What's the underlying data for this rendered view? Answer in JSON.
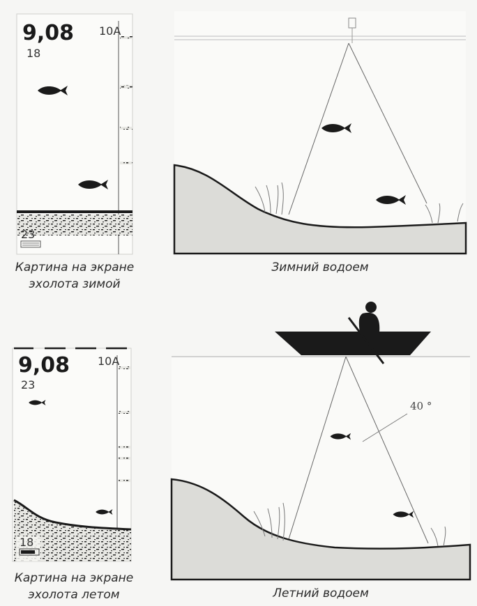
{
  "captions": {
    "winter_screen": [
      "Картина на экране",
      "эхолота зимой"
    ],
    "winter_water": "Зимний водоем",
    "summer_screen": [
      "Картина на экране",
      "эхолота летом"
    ],
    "summer_water": "Летний водоем"
  },
  "winter_screen": {
    "depth": "9,08",
    "temperature": "18",
    "mode": "10A",
    "bottom_reading": "23"
  },
  "summer_screen": {
    "depth": "9,08",
    "temperature": "23",
    "mode": "10A",
    "bottom_reading": "18"
  },
  "summer_water": {
    "beam_angle": "40 °"
  },
  "icons": [
    "fish-icon",
    "boat-icon",
    "fisherman-icon",
    "transducer-icon",
    "battery-icon"
  ]
}
